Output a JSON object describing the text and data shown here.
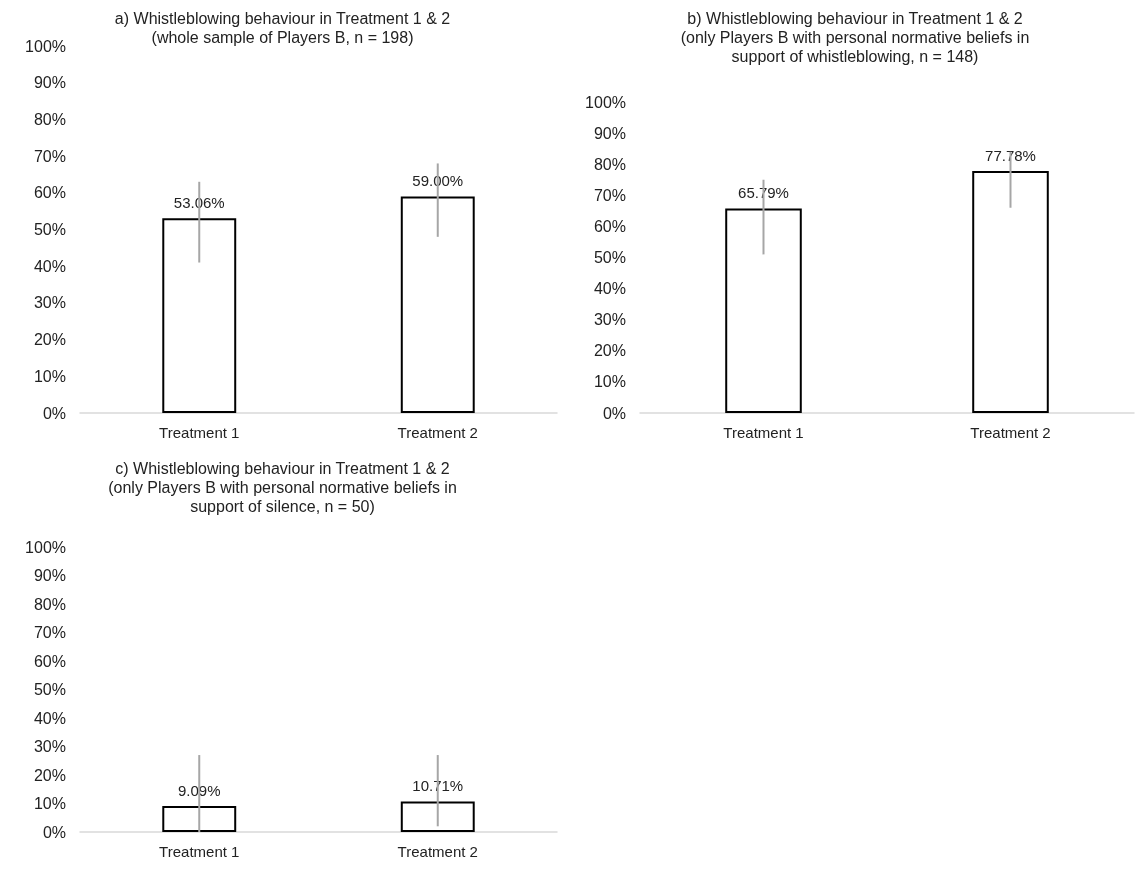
{
  "chart_data": [
    {
      "type": "bar",
      "title": "a) Whistleblowing behaviour in Treatment 1 & 2\n(whole sample of Players B, n = 198)",
      "categories": [
        "Treatment 1",
        "Treatment 2"
      ],
      "values": [
        53.06,
        59.0
      ],
      "value_labels": [
        "53.06%",
        "59.00%"
      ],
      "errors": [
        [
          41,
          63
        ],
        [
          48,
          68
        ]
      ],
      "color": "#ffffff",
      "ylim": [
        0,
        100
      ],
      "yticks": [
        {
          "value": 0,
          "label": "0%"
        },
        {
          "value": 10,
          "label": "10%"
        },
        {
          "value": 20,
          "label": "20%"
        },
        {
          "value": 30,
          "label": "30%"
        },
        {
          "value": 40,
          "label": "40%"
        },
        {
          "value": 50,
          "label": "50%"
        },
        {
          "value": 60,
          "label": "60%"
        },
        {
          "value": 70,
          "label": "70%"
        },
        {
          "value": 80,
          "label": "80%"
        },
        {
          "value": 90,
          "label": "90%"
        },
        {
          "value": 100,
          "label": "100%"
        }
      ]
    },
    {
      "type": "bar",
      "title": "b) Whistleblowing behaviour in Treatment 1 & 2\n(only Players B with personal normative beliefs in\nsupport of whistleblowing, n = 148)",
      "categories": [
        "Treatment 1",
        "Treatment 2"
      ],
      "values": [
        65.79,
        77.78
      ],
      "value_labels": [
        "65.79%",
        "77.78%"
      ],
      "errors": [
        [
          51,
          75
        ],
        [
          66,
          84
        ]
      ],
      "color": "#ffffff",
      "ylim": [
        0,
        100
      ],
      "yticks": [
        {
          "value": 0,
          "label": "0%"
        },
        {
          "value": 10,
          "label": "10%"
        },
        {
          "value": 20,
          "label": "20%"
        },
        {
          "value": 30,
          "label": "30%"
        },
        {
          "value": 40,
          "label": "40%"
        },
        {
          "value": 50,
          "label": "50%"
        },
        {
          "value": 60,
          "label": "60%"
        },
        {
          "value": 70,
          "label": "70%"
        },
        {
          "value": 80,
          "label": "80%"
        },
        {
          "value": 90,
          "label": "90%"
        },
        {
          "value": 100,
          "label": "100%"
        }
      ]
    },
    {
      "type": "bar",
      "title": "c) Whistleblowing behaviour in Treatment 1 & 2\n(only Players B with personal normative beliefs in\nsupport of silence, n = 50)",
      "categories": [
        "Treatment 1",
        "Treatment 2"
      ],
      "values": [
        9.09,
        10.71
      ],
      "value_labels": [
        "9.09%",
        "10.71%"
      ],
      "errors": [
        [
          0,
          27
        ],
        [
          2,
          27
        ]
      ],
      "color": "#ffffff",
      "ylim": [
        0,
        100
      ],
      "yticks": [
        {
          "value": 0,
          "label": "0%"
        },
        {
          "value": 10,
          "label": "10%"
        },
        {
          "value": 20,
          "label": "20%"
        },
        {
          "value": 30,
          "label": "30%"
        },
        {
          "value": 40,
          "label": "40%"
        },
        {
          "value": 50,
          "label": "50%"
        },
        {
          "value": 60,
          "label": "60%"
        },
        {
          "value": 70,
          "label": "70%"
        },
        {
          "value": 80,
          "label": "80%"
        },
        {
          "value": 90,
          "label": "90%"
        },
        {
          "value": 100,
          "label": "100%"
        }
      ]
    }
  ]
}
